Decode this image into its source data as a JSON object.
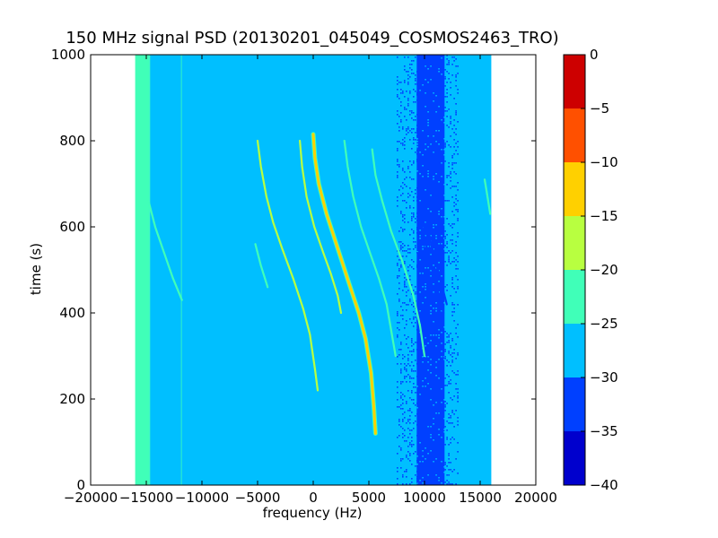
{
  "chart_data": {
    "type": "heatmap",
    "title": "150 MHz signal PSD (20130201_045049_COSMOS2463_TRO)",
    "xlabel": "frequency (Hz)",
    "ylabel": "time (s)",
    "xlim": [
      -20000,
      20000
    ],
    "ylim": [
      0,
      1000
    ],
    "xticks": [
      -20000,
      -15000,
      -10000,
      -5000,
      0,
      5000,
      10000,
      15000,
      20000
    ],
    "yticks": [
      0,
      200,
      400,
      600,
      800,
      1000
    ],
    "colorbar": {
      "vmin": -40,
      "vmax": 0,
      "ticks": [
        -40,
        -35,
        -30,
        -25,
        -20,
        -15,
        -10,
        -5,
        0
      ],
      "levels": [
        {
          "range": [
            -40,
            -35
          ],
          "color": "#0000cd"
        },
        {
          "range": [
            -35,
            -30
          ],
          "color": "#0040ff"
        },
        {
          "range": [
            -30,
            -25
          ],
          "color": "#00bfff"
        },
        {
          "range": [
            -25,
            -20
          ],
          "color": "#40ffb8"
        },
        {
          "range": [
            -20,
            -15
          ],
          "color": "#b8ff40"
        },
        {
          "range": [
            -15,
            -10
          ],
          "color": "#ffd000"
        },
        {
          "range": [
            -10,
            -5
          ],
          "color": "#ff5000"
        },
        {
          "range": [
            -5,
            0
          ],
          "color": "#cd0000"
        }
      ]
    },
    "regions": [
      {
        "x0": -16000,
        "x1": -14700,
        "level_dB": -22.5,
        "note": "edge band"
      },
      {
        "x0": -14700,
        "x1": 16000,
        "level_dB": -27.5,
        "note": "noise floor"
      },
      {
        "x0": 9300,
        "x1": 11800,
        "level_dB": -32.5,
        "note": "low band"
      },
      {
        "x0": 7500,
        "x1": 9300,
        "level_dB": -32.5,
        "density": 0.35
      },
      {
        "x0": 11800,
        "x1": 13000,
        "level_dB": -32.5,
        "density": 0.3
      }
    ],
    "series": [
      {
        "level_dB": -12.5,
        "points": [
          [
            0,
            815
          ],
          [
            150,
            760
          ],
          [
            500,
            700
          ],
          [
            1200,
            630
          ],
          [
            2200,
            550
          ],
          [
            3200,
            470
          ],
          [
            4100,
            400
          ],
          [
            4700,
            340
          ],
          [
            5200,
            260
          ],
          [
            5450,
            180
          ],
          [
            5600,
            120
          ]
        ]
      },
      {
        "level_dB": -17.5,
        "points": [
          [
            -1200,
            800
          ],
          [
            -1000,
            740
          ],
          [
            -600,
            670
          ],
          [
            100,
            600
          ],
          [
            900,
            540
          ],
          [
            1600,
            490
          ],
          [
            2200,
            440
          ],
          [
            2500,
            400
          ]
        ]
      },
      {
        "level_dB": -17.5,
        "points": [
          [
            -5000,
            800
          ],
          [
            -4700,
            740
          ],
          [
            -4200,
            670
          ],
          [
            -3600,
            610
          ],
          [
            -2800,
            550
          ],
          [
            -1800,
            480
          ],
          [
            -900,
            410
          ],
          [
            -300,
            350
          ],
          [
            150,
            270
          ],
          [
            400,
            220
          ]
        ]
      },
      {
        "level_dB": -22.5,
        "points": [
          [
            2800,
            800
          ],
          [
            3100,
            740
          ],
          [
            3600,
            670
          ],
          [
            4300,
            600
          ],
          [
            5100,
            540
          ],
          [
            5900,
            480
          ],
          [
            6600,
            420
          ],
          [
            7000,
            360
          ],
          [
            7400,
            300
          ]
        ]
      },
      {
        "level_dB": -22.5,
        "points": [
          [
            5300,
            780
          ],
          [
            5600,
            720
          ],
          [
            6200,
            660
          ],
          [
            7000,
            590
          ],
          [
            8000,
            520
          ],
          [
            9000,
            440
          ],
          [
            9600,
            370
          ],
          [
            10000,
            300
          ]
        ]
      },
      {
        "level_dB": -22.5,
        "points": [
          [
            -14800,
            660
          ],
          [
            -14200,
            600
          ],
          [
            -13400,
            540
          ],
          [
            -12600,
            480
          ],
          [
            -11800,
            430
          ]
        ]
      },
      {
        "level_dB": -22.5,
        "points": [
          [
            -5200,
            560
          ],
          [
            -4700,
            510
          ],
          [
            -4100,
            460
          ]
        ]
      },
      {
        "level_dB": -22.5,
        "points": [
          [
            15900,
            630
          ],
          [
            15600,
            680
          ],
          [
            15400,
            710
          ]
        ]
      },
      {
        "level_dB": -32.5,
        "points": [
          [
            9400,
            660
          ],
          [
            9800,
            600
          ],
          [
            10300,
            540
          ],
          [
            11000,
            470
          ],
          [
            11700,
            400
          ]
        ]
      },
      {
        "level_dB": -32.5,
        "points": [
          [
            10000,
            640
          ],
          [
            10600,
            560
          ],
          [
            11300,
            490
          ],
          [
            12000,
            420
          ]
        ]
      }
    ]
  }
}
